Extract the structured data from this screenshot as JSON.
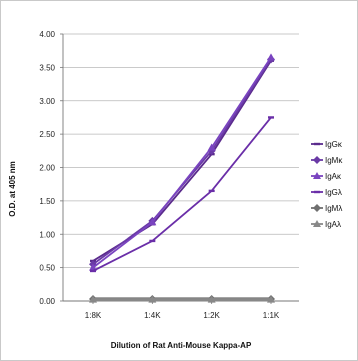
{
  "chart_data": {
    "type": "line",
    "title": "",
    "xlabel": "Dilution of Rat Anti-Mouse Kappa-AP",
    "ylabel": "O.D. at 405 nm",
    "categories": [
      "1:8K",
      "1:4K",
      "1:2K",
      "1:1K"
    ],
    "ylim": [
      0,
      4
    ],
    "yticks": [
      "0.00",
      "0.50",
      "1.00",
      "1.50",
      "2.00",
      "2.50",
      "3.00",
      "3.50",
      "4.00"
    ],
    "grid": true,
    "legend_position": "right",
    "series": [
      {
        "name": "IgGκ",
        "values": [
          0.6,
          1.15,
          2.2,
          3.6
        ],
        "color": "#5a2a8c",
        "marker": "line"
      },
      {
        "name": "IgMκ",
        "values": [
          0.55,
          1.2,
          2.25,
          3.62
        ],
        "color": "#6a3aa6",
        "marker": "diamond"
      },
      {
        "name": "IgAκ",
        "values": [
          0.5,
          1.18,
          2.3,
          3.65
        ],
        "color": "#7a44c0",
        "marker": "triangle"
      },
      {
        "name": "IgGλ",
        "values": [
          0.45,
          0.9,
          1.65,
          2.75
        ],
        "color": "#6a2ea8",
        "marker": "line"
      },
      {
        "name": "IgMλ",
        "values": [
          0.03,
          0.03,
          0.03,
          0.03
        ],
        "color": "#6f6f6f",
        "marker": "diamond"
      },
      {
        "name": "IgAλ",
        "values": [
          0.02,
          0.02,
          0.02,
          0.02
        ],
        "color": "#888888",
        "marker": "triangle"
      }
    ]
  }
}
